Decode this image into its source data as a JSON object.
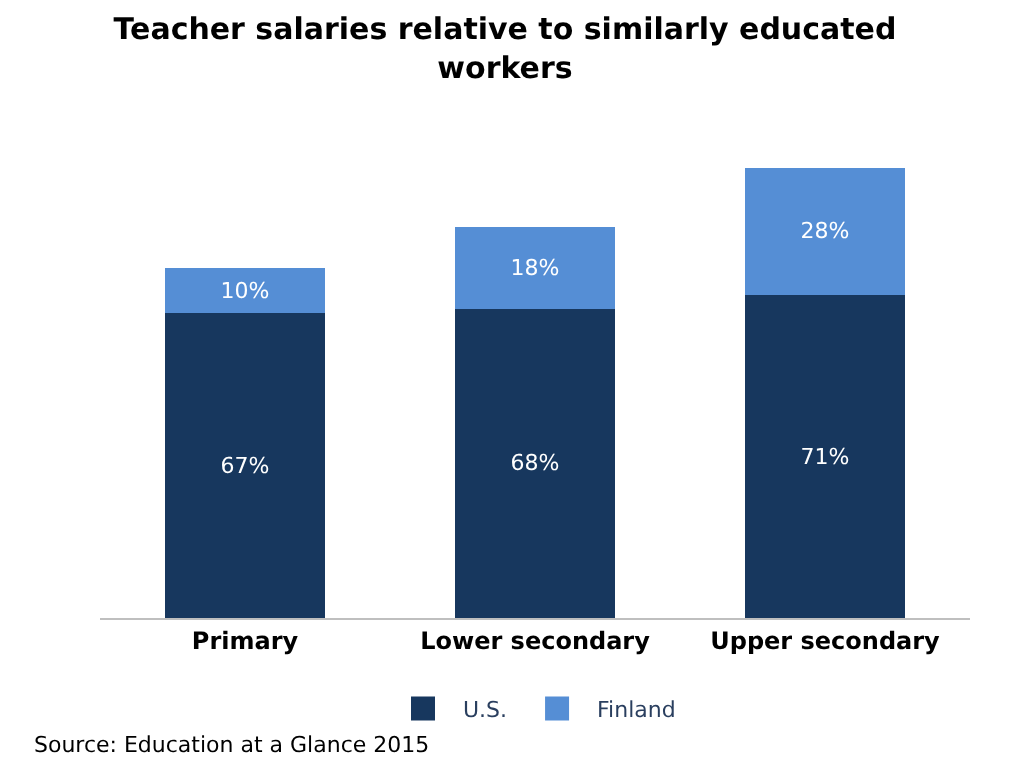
{
  "chart_data": {
    "type": "bar",
    "title": "Teacher salaries relative to similarly educated workers",
    "categories": [
      "Primary",
      "Lower secondary",
      "Upper secondary"
    ],
    "stacked": true,
    "series": [
      {
        "name": "U.S.",
        "color": "#17375e",
        "values": [
          67,
          68,
          71
        ],
        "value_labels": [
          "67%",
          "68%",
          "71%"
        ]
      },
      {
        "name": "Finland",
        "color": "#558ed5",
        "values": [
          10,
          18,
          28
        ],
        "value_labels": [
          "10%",
          "18%",
          "28%"
        ]
      }
    ],
    "legend": "bottom",
    "annotations": [
      "Source: Education at a Glance 2015"
    ]
  }
}
